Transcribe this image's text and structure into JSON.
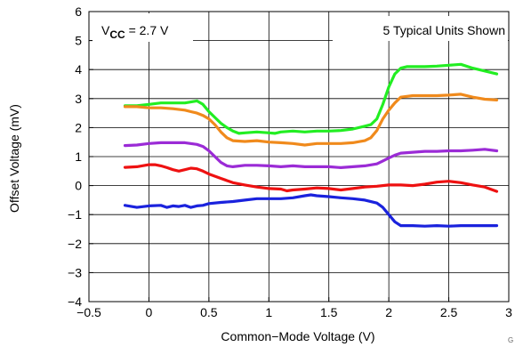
{
  "chart_data": {
    "type": "line",
    "title": "",
    "xlabel": "Common−Mode Voltage (V)",
    "ylabel": "Offset Voltage (mV)",
    "xlim": [
      -0.5,
      3
    ],
    "ylim": [
      -4,
      6
    ],
    "xticks": [
      -0.5,
      0,
      0.5,
      1,
      1.5,
      2,
      2.5,
      3
    ],
    "xtick_labels": [
      "−0.5",
      "0",
      "0.5",
      "1",
      "1.5",
      "2",
      "2.5",
      "3"
    ],
    "yticks": [
      -4,
      -3,
      -2,
      -1,
      0,
      1,
      2,
      3,
      4,
      5,
      6
    ],
    "ytick_labels": [
      "−4",
      "−3",
      "−2",
      "−1",
      "0",
      "1",
      "2",
      "3",
      "4",
      "5",
      "6"
    ],
    "grid": true,
    "annotations": {
      "vcc_prefix": "V",
      "vcc_subscript": "CC",
      "vcc_value": " = 2.7 V",
      "units_label": "5 Typical Units Shown",
      "corner_id": "G"
    },
    "series": [
      {
        "color": "#22ee22",
        "x": [
          -0.2,
          -0.1,
          0,
          0.1,
          0.2,
          0.3,
          0.4,
          0.45,
          0.5,
          0.55,
          0.6,
          0.65,
          0.7,
          0.75,
          0.8,
          0.9,
          1.0,
          1.05,
          1.1,
          1.2,
          1.3,
          1.4,
          1.5,
          1.6,
          1.7,
          1.8,
          1.85,
          1.9,
          1.95,
          2.0,
          2.05,
          2.1,
          2.15,
          2.2,
          2.3,
          2.4,
          2.5,
          2.6,
          2.7,
          2.8,
          2.9
        ],
        "y": [
          2.75,
          2.75,
          2.8,
          2.85,
          2.85,
          2.85,
          2.92,
          2.8,
          2.55,
          2.35,
          2.15,
          2.0,
          1.88,
          1.8,
          1.82,
          1.85,
          1.82,
          1.8,
          1.85,
          1.88,
          1.85,
          1.88,
          1.88,
          1.9,
          1.95,
          2.05,
          2.1,
          2.3,
          2.8,
          3.4,
          3.85,
          4.05,
          4.1,
          4.1,
          4.1,
          4.12,
          4.15,
          4.18,
          4.05,
          3.95,
          3.85
        ]
      },
      {
        "color": "#f08a1c",
        "x": [
          -0.2,
          -0.1,
          0,
          0.1,
          0.2,
          0.3,
          0.35,
          0.4,
          0.45,
          0.5,
          0.55,
          0.6,
          0.65,
          0.7,
          0.8,
          0.9,
          1.0,
          1.1,
          1.2,
          1.3,
          1.4,
          1.5,
          1.6,
          1.7,
          1.8,
          1.85,
          1.9,
          1.95,
          2.0,
          2.05,
          2.1,
          2.2,
          2.3,
          2.4,
          2.5,
          2.6,
          2.7,
          2.8,
          2.9
        ],
        "y": [
          2.72,
          2.72,
          2.68,
          2.68,
          2.65,
          2.6,
          2.55,
          2.5,
          2.42,
          2.3,
          2.1,
          1.85,
          1.65,
          1.55,
          1.52,
          1.55,
          1.5,
          1.48,
          1.45,
          1.4,
          1.45,
          1.45,
          1.45,
          1.48,
          1.55,
          1.65,
          1.9,
          2.3,
          2.6,
          2.85,
          3.05,
          3.1,
          3.1,
          3.1,
          3.12,
          3.15,
          3.05,
          2.98,
          2.95
        ]
      },
      {
        "color": "#9b2bd6",
        "x": [
          -0.2,
          -0.1,
          0,
          0.1,
          0.2,
          0.3,
          0.4,
          0.45,
          0.5,
          0.55,
          0.6,
          0.65,
          0.7,
          0.8,
          0.9,
          1.0,
          1.1,
          1.2,
          1.3,
          1.4,
          1.5,
          1.6,
          1.7,
          1.8,
          1.9,
          1.95,
          2.0,
          2.05,
          2.1,
          2.2,
          2.3,
          2.4,
          2.5,
          2.6,
          2.7,
          2.8,
          2.9
        ],
        "y": [
          1.38,
          1.4,
          1.45,
          1.48,
          1.48,
          1.48,
          1.42,
          1.35,
          1.2,
          1.0,
          0.8,
          0.68,
          0.65,
          0.7,
          0.7,
          0.68,
          0.65,
          0.68,
          0.65,
          0.65,
          0.65,
          0.62,
          0.65,
          0.68,
          0.75,
          0.85,
          0.95,
          1.05,
          1.12,
          1.15,
          1.18,
          1.18,
          1.2,
          1.2,
          1.22,
          1.25,
          1.2
        ]
      },
      {
        "color": "#ee1111",
        "x": [
          -0.2,
          -0.1,
          0,
          0.05,
          0.1,
          0.15,
          0.2,
          0.25,
          0.3,
          0.35,
          0.4,
          0.45,
          0.5,
          0.6,
          0.7,
          0.8,
          0.9,
          1.0,
          1.1,
          1.15,
          1.2,
          1.3,
          1.4,
          1.5,
          1.6,
          1.7,
          1.8,
          1.9,
          2.0,
          2.1,
          2.2,
          2.3,
          2.4,
          2.5,
          2.6,
          2.7,
          2.8,
          2.9
        ],
        "y": [
          0.63,
          0.65,
          0.72,
          0.72,
          0.68,
          0.62,
          0.55,
          0.5,
          0.55,
          0.6,
          0.58,
          0.5,
          0.4,
          0.25,
          0.1,
          0.02,
          -0.05,
          -0.1,
          -0.12,
          -0.18,
          -0.15,
          -0.12,
          -0.08,
          -0.1,
          -0.15,
          -0.1,
          -0.05,
          -0.02,
          0.02,
          0.02,
          0.0,
          0.05,
          0.12,
          0.15,
          0.1,
          0.02,
          -0.05,
          -0.2
        ]
      },
      {
        "color": "#1a22dd",
        "x": [
          -0.2,
          -0.1,
          0,
          0.1,
          0.15,
          0.2,
          0.25,
          0.3,
          0.35,
          0.4,
          0.45,
          0.5,
          0.6,
          0.7,
          0.8,
          0.9,
          1.0,
          1.1,
          1.2,
          1.3,
          1.35,
          1.4,
          1.5,
          1.6,
          1.7,
          1.8,
          1.9,
          1.95,
          2.0,
          2.05,
          2.1,
          2.2,
          2.3,
          2.4,
          2.5,
          2.6,
          2.7,
          2.8,
          2.9
        ],
        "y": [
          -0.68,
          -0.75,
          -0.7,
          -0.68,
          -0.75,
          -0.7,
          -0.72,
          -0.68,
          -0.75,
          -0.7,
          -0.68,
          -0.62,
          -0.58,
          -0.55,
          -0.5,
          -0.45,
          -0.45,
          -0.45,
          -0.42,
          -0.35,
          -0.32,
          -0.35,
          -0.38,
          -0.42,
          -0.45,
          -0.5,
          -0.6,
          -0.75,
          -1.0,
          -1.25,
          -1.38,
          -1.38,
          -1.4,
          -1.38,
          -1.4,
          -1.38,
          -1.38,
          -1.38,
          -1.38
        ]
      }
    ]
  }
}
